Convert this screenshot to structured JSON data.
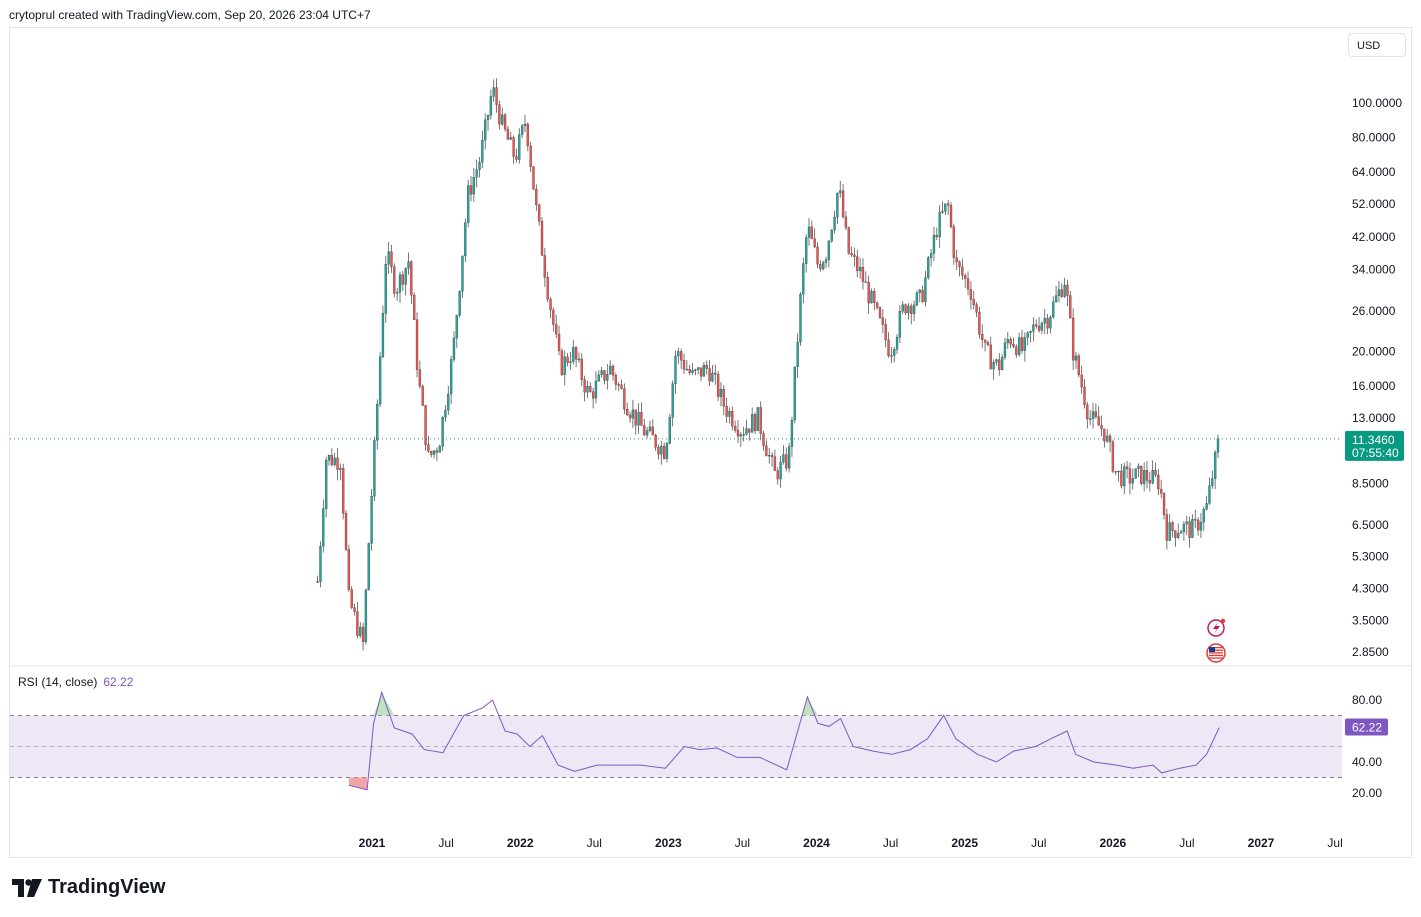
{
  "header": {
    "text": "crytoprul created with TradingView.com, Sep 20, 2026 23:04 UTC+7"
  },
  "brand": {
    "name": "TradingView"
  },
  "currency_label": "USD",
  "price_badge": {
    "price": "11.3460",
    "countdown": "07:55:40"
  },
  "rsi": {
    "legend": "RSI (14, close)",
    "value": "62.22",
    "upper": 70,
    "lower": 30
  },
  "colors": {
    "up": "#26a69a",
    "down": "#ef5350",
    "rsi_line": "#7e57c2",
    "rsi_band": "#ede7f6",
    "price_line": "#089981"
  },
  "chart_data": [
    {
      "type": "line",
      "title": "",
      "scale": "log",
      "y_ticks": [
        "100.0000",
        "80.0000",
        "64.0000",
        "52.0000",
        "42.0000",
        "34.0000",
        "26.0000",
        "20.0000",
        "16.0000",
        "13.0000",
        "8.5000",
        "6.5000",
        "5.3000",
        "4.3000",
        "3.5000",
        "2.8500"
      ],
      "x_ticks": [
        {
          "label": "2021",
          "bold": true
        },
        {
          "label": "Jul",
          "bold": false
        },
        {
          "label": "2022",
          "bold": true
        },
        {
          "label": "Jul",
          "bold": false
        },
        {
          "label": "2023",
          "bold": true
        },
        {
          "label": "Jul",
          "bold": false
        },
        {
          "label": "2024",
          "bold": true
        },
        {
          "label": "Jul",
          "bold": false
        },
        {
          "label": "2025",
          "bold": true
        },
        {
          "label": "Jul",
          "bold": false
        },
        {
          "label": "2026",
          "bold": true
        },
        {
          "label": "Jul",
          "bold": false
        },
        {
          "label": "2027",
          "bold": true
        },
        {
          "label": "Jul",
          "bold": false
        }
      ],
      "series": [
        {
          "values": [
            [
              "2020-08-20",
              4.5
            ],
            [
              "2020-09-10",
              10.0
            ],
            [
              "2020-10-15",
              9.9
            ],
            [
              "2020-11-05",
              4.0
            ],
            [
              "2020-12-10",
              3.0
            ],
            [
              "2020-12-28",
              7.0
            ],
            [
              "2021-01-12",
              13.0
            ],
            [
              "2021-02-05",
              38.0
            ],
            [
              "2021-03-01",
              30.0
            ],
            [
              "2021-04-01",
              36.0
            ],
            [
              "2021-04-25",
              17.0
            ],
            [
              "2021-05-20",
              10.0
            ],
            [
              "2021-06-15",
              11.0
            ],
            [
              "2021-07-20",
              20.0
            ],
            [
              "2021-08-25",
              55.0
            ],
            [
              "2021-09-25",
              70.0
            ],
            [
              "2021-10-25",
              110.0
            ],
            [
              "2021-11-20",
              85.0
            ],
            [
              "2021-12-20",
              70.0
            ],
            [
              "2022-01-15",
              90.0
            ],
            [
              "2022-02-10",
              50.0
            ],
            [
              "2022-03-10",
              30.0
            ],
            [
              "2022-04-10",
              18.0
            ],
            [
              "2022-05-10",
              20.0
            ],
            [
              "2022-06-20",
              15.0
            ],
            [
              "2022-08-10",
              18.0
            ],
            [
              "2022-09-25",
              14.0
            ],
            [
              "2022-11-01",
              12.0
            ],
            [
              "2022-12-25",
              10.5
            ],
            [
              "2023-01-20",
              20.0
            ],
            [
              "2023-03-01",
              17.0
            ],
            [
              "2023-04-10",
              18.0
            ],
            [
              "2023-05-20",
              14.0
            ],
            [
              "2023-07-01",
              12.0
            ],
            [
              "2023-08-10",
              13.0
            ],
            [
              "2023-09-20",
              9.0
            ],
            [
              "2023-10-25",
              10.0
            ],
            [
              "2023-11-25",
              30.0
            ],
            [
              "2023-12-10",
              45.0
            ],
            [
              "2024-01-05",
              35.0
            ],
            [
              "2024-01-25",
              38.0
            ],
            [
              "2024-02-25",
              58.0
            ],
            [
              "2024-03-20",
              38.0
            ],
            [
              "2024-04-20",
              33.0
            ],
            [
              "2024-05-25",
              26.0
            ],
            [
              "2024-07-01",
              20.0
            ],
            [
              "2024-08-05",
              27.0
            ],
            [
              "2024-09-15",
              28.0
            ],
            [
              "2024-10-25",
              45.0
            ],
            [
              "2024-11-20",
              52.0
            ],
            [
              "2024-12-10",
              35.0
            ],
            [
              "2025-01-15",
              30.0
            ],
            [
              "2025-02-20",
              20.0
            ],
            [
              "2025-03-25",
              18.0
            ],
            [
              "2025-04-20",
              22.0
            ],
            [
              "2025-05-25",
              20.0
            ],
            [
              "2025-06-25",
              24.0
            ],
            [
              "2025-07-25",
              25.0
            ],
            [
              "2025-09-05",
              32.0
            ],
            [
              "2025-09-25",
              20.0
            ],
            [
              "2025-11-05",
              13.0
            ],
            [
              "2025-12-10",
              12.0
            ],
            [
              "2026-01-10",
              9.0
            ],
            [
              "2026-02-10",
              8.8
            ],
            [
              "2026-03-10",
              9.0
            ],
            [
              "2026-04-25",
              8.6
            ],
            [
              "2026-05-15",
              6.2
            ],
            [
              "2026-06-15",
              6.4
            ],
            [
              "2026-07-20",
              6.3
            ],
            [
              "2026-08-20",
              7.3
            ],
            [
              "2026-09-20",
              11.346
            ]
          ]
        }
      ]
    },
    {
      "type": "line",
      "title": "RSI (14, close)",
      "ylim": [
        10,
        100
      ],
      "y_ticks": [
        "80.00",
        "40.00",
        "20.00"
      ],
      "series": [
        {
          "name": "RSI (14, close)",
          "values": [
            [
              "2020-11-05",
              25
            ],
            [
              "2020-12-20",
              22
            ],
            [
              "2021-01-05",
              65
            ],
            [
              "2021-01-25",
              85
            ],
            [
              "2021-02-25",
              62
            ],
            [
              "2021-04-10",
              58
            ],
            [
              "2021-05-10",
              48
            ],
            [
              "2021-06-25",
              46
            ],
            [
              "2021-08-15",
              70
            ],
            [
              "2021-10-01",
              75
            ],
            [
              "2021-10-25",
              80
            ],
            [
              "2021-11-25",
              60
            ],
            [
              "2021-12-25",
              58
            ],
            [
              "2022-01-25",
              50
            ],
            [
              "2022-02-25",
              57
            ],
            [
              "2022-04-05",
              38
            ],
            [
              "2022-05-15",
              34
            ],
            [
              "2022-07-10",
              38
            ],
            [
              "2022-09-10",
              38
            ],
            [
              "2022-10-25",
              38
            ],
            [
              "2022-12-25",
              36
            ],
            [
              "2023-02-10",
              50
            ],
            [
              "2023-03-20",
              48
            ],
            [
              "2023-05-01",
              49
            ],
            [
              "2023-06-20",
              43
            ],
            [
              "2023-08-15",
              43
            ],
            [
              "2023-10-20",
              35
            ],
            [
              "2023-12-10",
              82
            ],
            [
              "2024-01-05",
              65
            ],
            [
              "2024-02-01",
              63
            ],
            [
              "2024-03-01",
              68
            ],
            [
              "2024-04-01",
              50
            ],
            [
              "2024-05-20",
              47
            ],
            [
              "2024-07-05",
              45
            ],
            [
              "2024-08-20",
              48
            ],
            [
              "2024-10-01",
              55
            ],
            [
              "2024-11-10",
              70
            ],
            [
              "2024-12-10",
              55
            ],
            [
              "2025-02-01",
              45
            ],
            [
              "2025-03-20",
              40
            ],
            [
              "2025-05-01",
              47
            ],
            [
              "2025-06-25",
              50
            ],
            [
              "2025-08-01",
              55
            ],
            [
              "2025-09-10",
              60
            ],
            [
              "2025-10-01",
              45
            ],
            [
              "2025-11-15",
              40
            ],
            [
              "2026-01-10",
              38
            ],
            [
              "2026-02-20",
              36
            ],
            [
              "2026-04-10",
              38
            ],
            [
              "2026-05-01",
              33
            ],
            [
              "2026-06-15",
              36
            ],
            [
              "2026-07-25",
              38
            ],
            [
              "2026-08-20",
              45
            ],
            [
              "2026-09-20",
              62.22
            ]
          ]
        }
      ]
    }
  ]
}
